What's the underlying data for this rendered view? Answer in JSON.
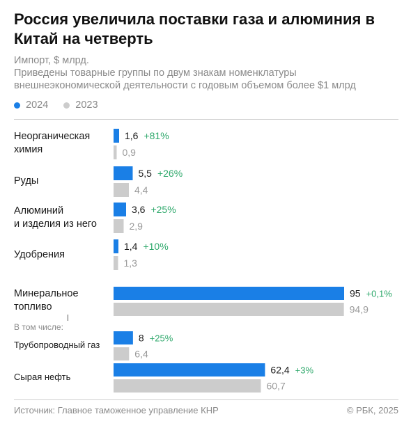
{
  "header": {
    "title": "Россия увеличила поставки газа и алюминия в Китай на четверть",
    "subtitle_line1": "Импорт, $ млрд.",
    "subtitle_line2": "Приведены товарные группы по двум знакам номенклатуры",
    "subtitle_line3": "внешнеэкономической деятельности с годовым объемом более $1 млрд"
  },
  "legend": {
    "items": [
      {
        "label": "2024",
        "color": "#1a7fe6"
      },
      {
        "label": "2023",
        "color": "#cccccc"
      }
    ]
  },
  "labels": {
    "chem": "Неорганическая химия",
    "ores": "Руды",
    "alum_line1": "Алюминий",
    "alum_line2": "и изделия из него",
    "fert": "Удобрения",
    "fuel_line1": "Минеральное",
    "fuel_line2": "топливо",
    "including": "В том числе:",
    "gas": "Трубопроводный газ",
    "oil": "Сырая нефть"
  },
  "footer": {
    "source": "Источник: Главное таможенное управление КНР",
    "copyright": "© РБК, 2025"
  },
  "chart_data": [
    {
      "type": "bar",
      "orientation": "horizontal",
      "scale_max": 3.2,
      "categories": [
        "Неорганическая химия",
        "Руды",
        "Алюминий и изделия из него",
        "Удобрения"
      ],
      "series": [
        {
          "name": "2024",
          "color": "#1a7fe6",
          "values": [
            1.6,
            5.5,
            3.6,
            1.4
          ],
          "labels": [
            "1,6",
            "5,5",
            "3,6",
            "1,4"
          ]
        },
        {
          "name": "2023",
          "color": "#cccccc",
          "values": [
            0.9,
            4.4,
            2.9,
            1.3
          ],
          "labels": [
            "0,9",
            "4,4",
            "2,9",
            "1,3"
          ]
        }
      ],
      "changes": [
        "+81%",
        "+26%",
        "+25%",
        "+10%"
      ],
      "change_color": "#2ea86b"
    },
    {
      "type": "bar",
      "orientation": "horizontal",
      "scale_max": 95,
      "categories": [
        "Минеральное топливо",
        "Трубопроводный газ",
        "Сырая нефть"
      ],
      "series": [
        {
          "name": "2024",
          "color": "#1a7fe6",
          "values": [
            95,
            8,
            62.4
          ],
          "labels": [
            "95",
            "8",
            "62,4"
          ]
        },
        {
          "name": "2023",
          "color": "#cccccc",
          "values": [
            94.9,
            6.4,
            60.7
          ],
          "labels": [
            "94,9",
            "6,4",
            "60,7"
          ]
        }
      ],
      "changes": [
        "+0,1%",
        "+25%",
        "+3%"
      ],
      "change_color": "#2ea86b"
    }
  ]
}
